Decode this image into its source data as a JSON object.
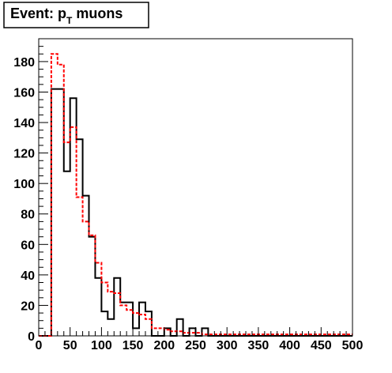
{
  "chart_data": {
    "type": "histogram",
    "title": {
      "prefix": "Event: p",
      "subscript": "T",
      "suffix": " muons"
    },
    "xlim": [
      0,
      500
    ],
    "ylim": [
      0,
      195
    ],
    "bin_width": 10,
    "x_ticks": [
      0,
      50,
      100,
      150,
      200,
      250,
      300,
      350,
      400,
      450,
      500
    ],
    "y_ticks": [
      0,
      20,
      40,
      60,
      80,
      100,
      120,
      140,
      160,
      180
    ],
    "grid": false,
    "series": [
      {
        "style": "solid",
        "color": "#000000",
        "bin_edges": [
          0,
          10,
          20,
          30,
          40,
          50,
          60,
          70,
          80,
          90,
          100,
          110,
          120,
          130,
          140,
          150,
          160,
          170,
          180,
          190,
          200,
          210,
          220,
          230,
          240,
          250,
          260,
          270,
          280,
          500
        ],
        "values": [
          0,
          0,
          162,
          162,
          108,
          156,
          129,
          92,
          65,
          38,
          16,
          11,
          38,
          22,
          22,
          5,
          22,
          16,
          0,
          0,
          5,
          0,
          11,
          0,
          5,
          0,
          5,
          0,
          0
        ]
      },
      {
        "style": "dashed",
        "color": "#ff0000",
        "bin_edges": [
          0,
          10,
          20,
          30,
          40,
          50,
          60,
          70,
          80,
          90,
          100,
          110,
          120,
          130,
          140,
          150,
          160,
          170,
          180,
          190,
          200,
          210,
          220,
          230,
          240,
          250,
          260,
          270,
          280,
          300,
          310,
          320,
          350,
          400,
          450,
          500
        ],
        "values": [
          0,
          0,
          185,
          178,
          127,
          137,
          91,
          75,
          66,
          48,
          35,
          29,
          28,
          20,
          17,
          15,
          14,
          11,
          5,
          5,
          4,
          3,
          3,
          2,
          2,
          2,
          1,
          1,
          1,
          1,
          1,
          1,
          1,
          1,
          1
        ]
      }
    ]
  }
}
